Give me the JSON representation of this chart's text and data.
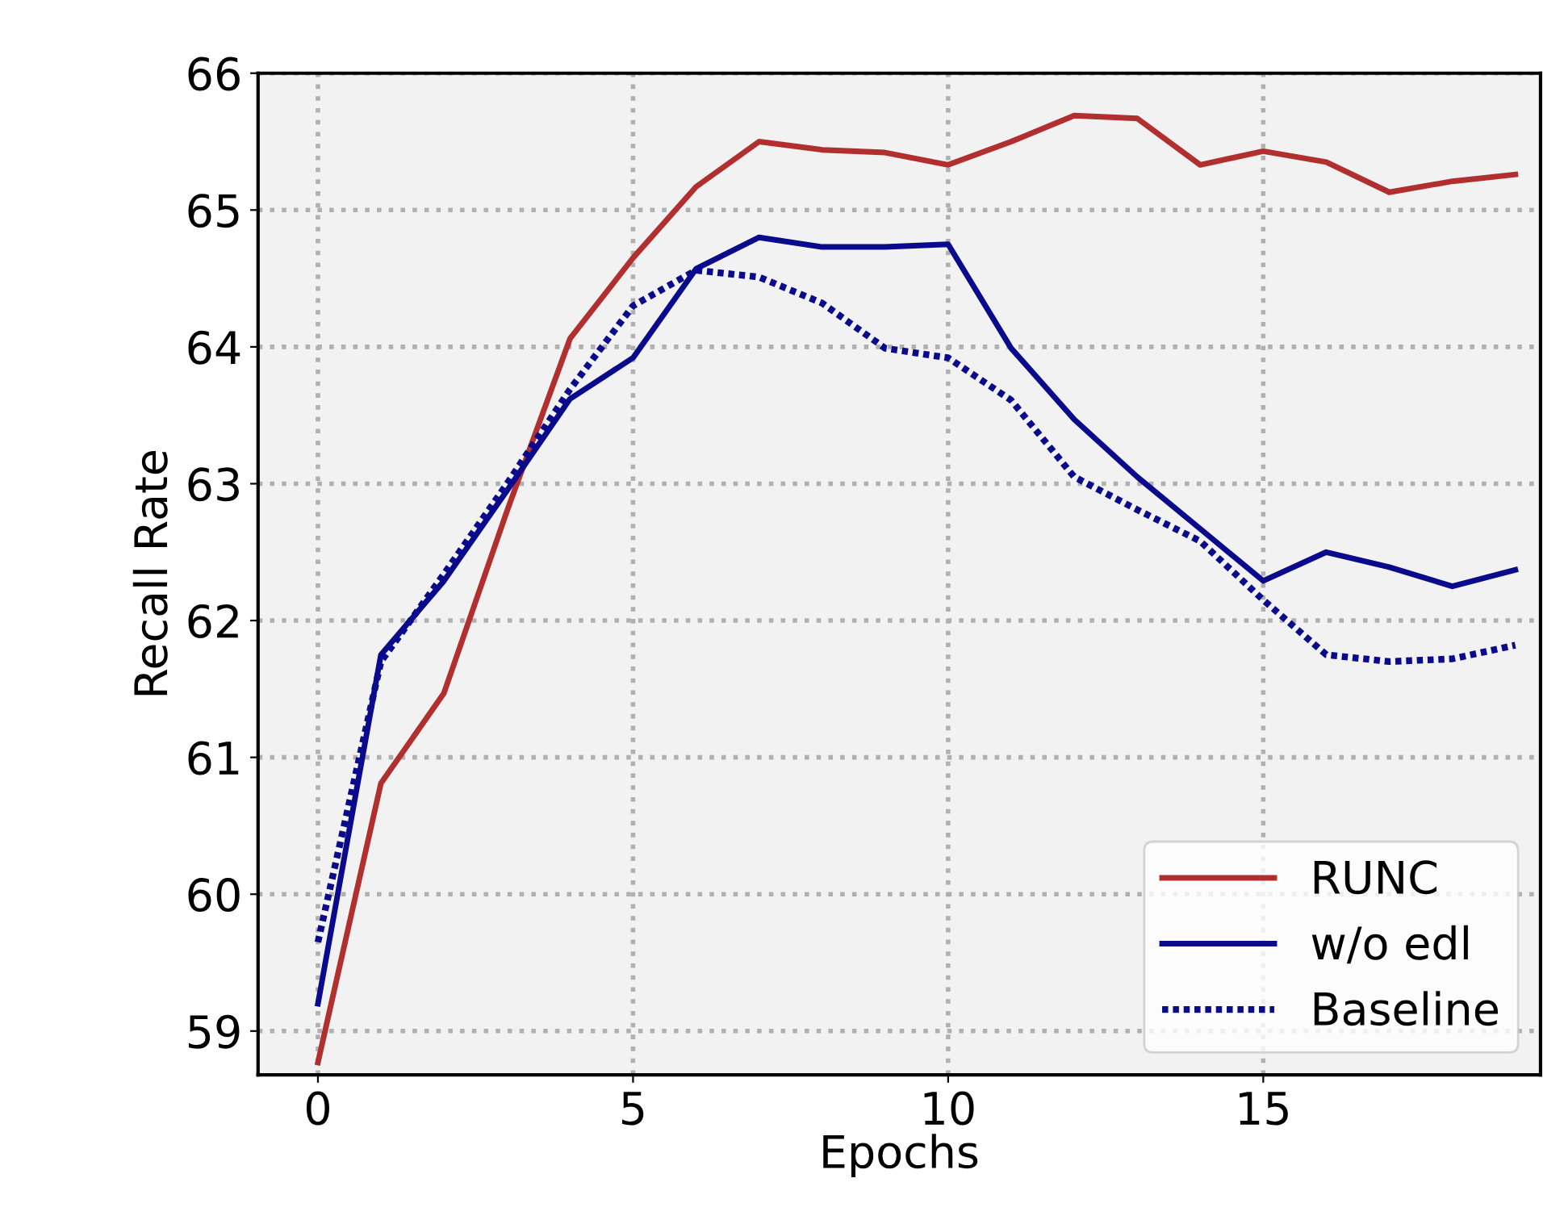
{
  "chart_data": {
    "type": "line",
    "xlabel": "Epochs",
    "ylabel": "Recall Rate",
    "x": [
      0,
      1,
      2,
      3,
      4,
      5,
      6,
      7,
      8,
      9,
      10,
      11,
      12,
      13,
      14,
      15,
      16,
      17,
      18,
      19
    ],
    "series": [
      {
        "name": "RUNC",
        "color": "#b22f2f",
        "line_style": "solid",
        "values": [
          58.77,
          60.81,
          61.47,
          62.8,
          64.06,
          64.65,
          65.17,
          65.5,
          65.44,
          65.42,
          65.33,
          65.5,
          65.69,
          65.67,
          65.33,
          65.43,
          65.35,
          65.13,
          65.21,
          65.26
        ]
      },
      {
        "name": "w/o edl",
        "color": "#0a0a8c",
        "line_style": "solid",
        "values": [
          59.2,
          61.75,
          62.29,
          62.95,
          63.62,
          63.92,
          64.57,
          64.8,
          64.73,
          64.73,
          64.75,
          63.99,
          63.47,
          63.05,
          62.67,
          62.29,
          62.5,
          62.39,
          62.25,
          62.37
        ]
      },
      {
        "name": "Baseline",
        "color": "#0a0a8c",
        "line_style": "dotted",
        "values": [
          59.65,
          61.7,
          62.34,
          63.0,
          63.69,
          64.3,
          64.56,
          64.51,
          64.32,
          63.99,
          63.92,
          63.61,
          63.05,
          62.81,
          62.58,
          62.15,
          61.75,
          61.7,
          61.72,
          61.82
        ]
      }
    ],
    "xlim": [
      -0.95,
      19.4
    ],
    "xticks": [
      0,
      5,
      10,
      15
    ],
    "ylim": [
      58.68,
      66
    ],
    "yticks": [
      59,
      60,
      61,
      62,
      63,
      64,
      65,
      66
    ],
    "grid": true,
    "legend": "bottom right",
    "marker": "none"
  }
}
